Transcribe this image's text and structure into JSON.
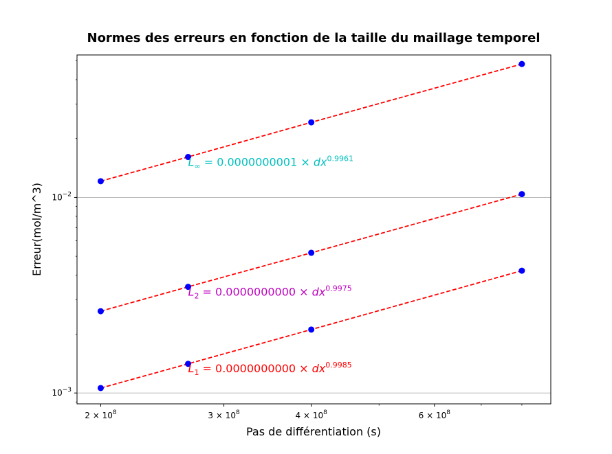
{
  "chart_data": {
    "type": "scatter",
    "title": "Normes des erreurs en fonction de la taille du maillage temporel",
    "xlabel": "Pas de différentiation (s)",
    "ylabel": "Erreur(mol/m^3)",
    "xscale": "log",
    "yscale": "log",
    "xlim": [
      185000000,
      880000000
    ],
    "ylim": [
      0.00088,
      0.0535
    ],
    "grid": "major y gridlines only",
    "x": [
      200000000,
      266666667,
      400000000,
      800000000
    ],
    "x_ticks": [
      {
        "value": 200000000,
        "mantissa": "2",
        "base": "10",
        "exp": "8"
      },
      {
        "value": 300000000,
        "mantissa": "3",
        "base": "10",
        "exp": "8"
      },
      {
        "value": 400000000,
        "mantissa": "4",
        "base": "10",
        "exp": "8"
      },
      {
        "value": 600000000,
        "mantissa": "6",
        "base": "10",
        "exp": "8"
      }
    ],
    "x_minor_ticks": [
      500000000,
      700000000,
      800000000
    ],
    "y_ticks": [
      {
        "value": 0.001,
        "base": "10",
        "exp": "−3"
      },
      {
        "value": 0.01,
        "base": "10",
        "exp": "−2"
      }
    ],
    "series": [
      {
        "values": [
          0.0121,
          0.0161,
          0.0242,
          0.0481
        ],
        "point_color": "#0000ff",
        "fit_color": "#ff0000"
      },
      {
        "values": [
          0.00262,
          0.00349,
          0.00521,
          0.0104
        ],
        "point_color": "#0000ff",
        "fit_color": "#ff0000"
      },
      {
        "values": [
          0.00106,
          0.00141,
          0.00211,
          0.00422
        ],
        "point_color": "#0000ff",
        "fit_color": "#ff0000"
      }
    ],
    "annotations": [
      {
        "x": 266666667,
        "y": 0.0152,
        "base": "L",
        "sub": "∞",
        "text": " = 0.0000000001 × ",
        "var": "dx",
        "exp": "0.9961",
        "color": "#00bfbf"
      },
      {
        "x": 266666667,
        "y": 0.0033,
        "base": "L",
        "sub": "2",
        "text": " = 0.0000000000 × ",
        "var": "dx",
        "exp": "0.9975",
        "color": "#bf00bf"
      },
      {
        "x": 266666667,
        "y": 0.00134,
        "base": "L",
        "sub": "1",
        "text": " = 0.0000000000 × ",
        "var": "dx",
        "exp": "0.9985",
        "color": "#ff0000"
      }
    ]
  }
}
